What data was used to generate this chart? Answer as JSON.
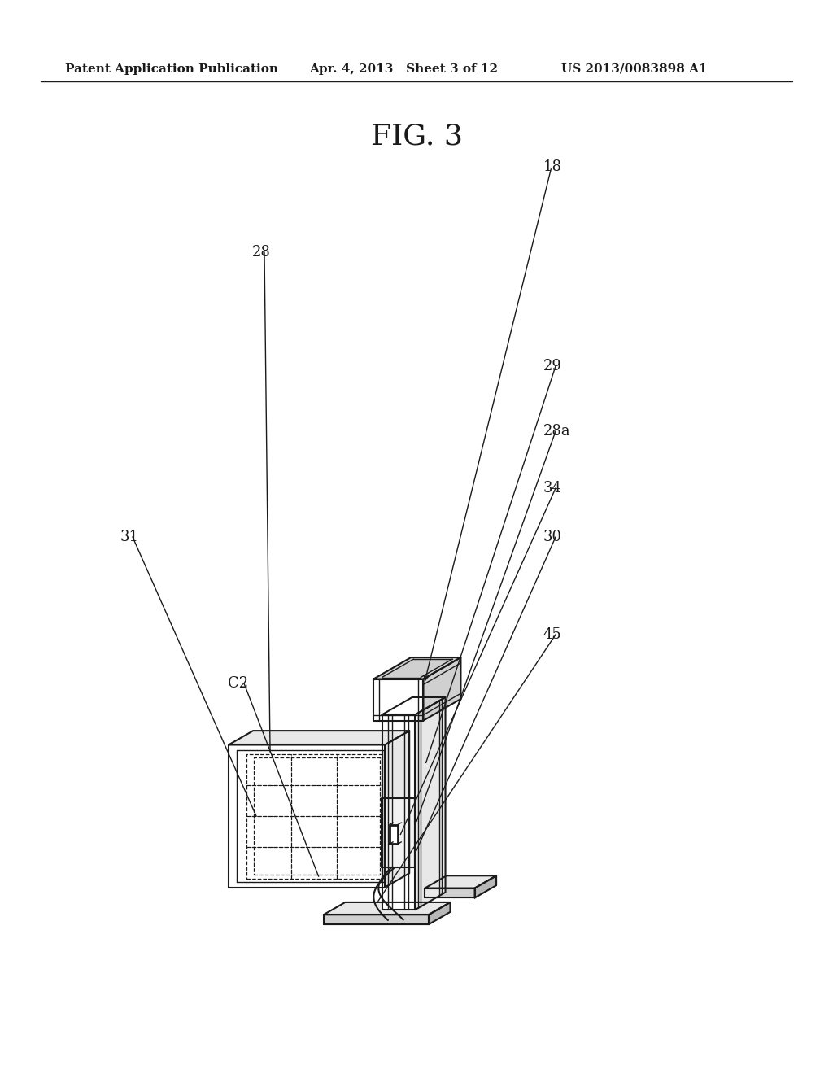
{
  "header_left": "Patent Application Publication",
  "header_mid": "Apr. 4, 2013   Sheet 3 of 12",
  "header_right": "US 2013/0083898 A1",
  "fig_title": "FIG. 3",
  "bg_color": "#ffffff",
  "line_color": "#1a1a1a",
  "gray_light": "#e8e8e8",
  "gray_mid": "#d0d0d0",
  "gray_dark": "#b8b8b8",
  "white": "#ffffff"
}
